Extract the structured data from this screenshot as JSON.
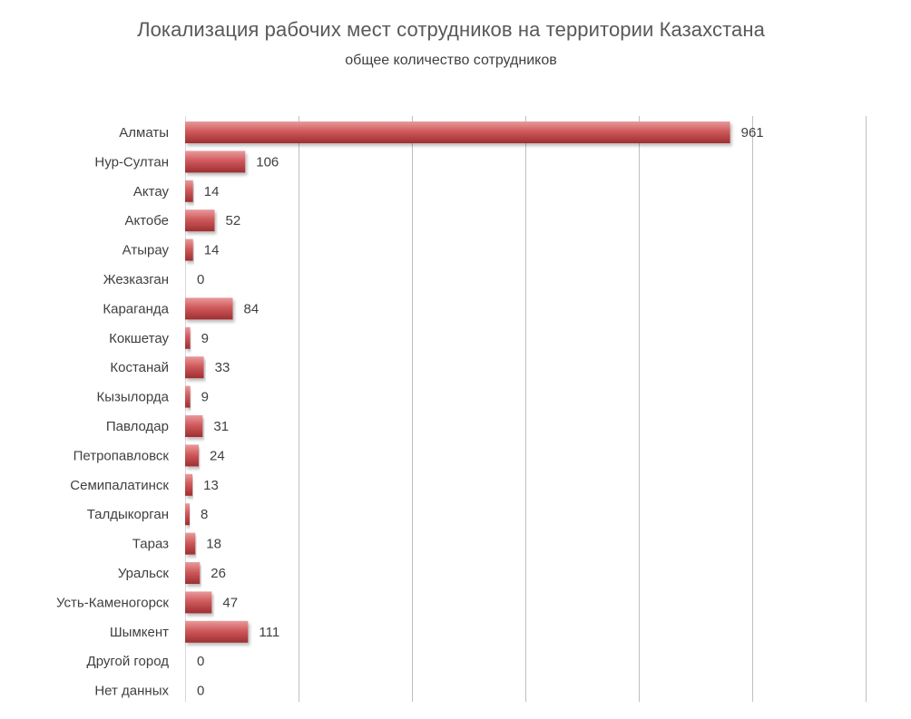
{
  "chart_data": {
    "type": "bar",
    "orientation": "horizontal",
    "title": "Локализация рабочих мест сотрудников на территории Казахстана",
    "subtitle": "общее количество сотрудников",
    "categories": [
      "Алматы",
      "Нур-Султан",
      "Актау",
      "Актобе",
      "Атырау",
      "Жезказган",
      "Караганда",
      "Кокшетау",
      "Костанай",
      "Кызылорда",
      "Павлодар",
      "Петропавловск",
      "Семипалатинск",
      "Талдыкорган",
      "Тараз",
      "Уральск",
      "Усть-Каменогорск",
      "Шымкент",
      "Другой город",
      "Нет данных"
    ],
    "values": [
      961,
      106,
      14,
      52,
      14,
      0,
      84,
      9,
      33,
      9,
      31,
      24,
      13,
      8,
      18,
      26,
      47,
      111,
      0,
      0
    ],
    "xlim": [
      0,
      1200
    ],
    "xticks_labeled": false,
    "grid": true,
    "legend": "none",
    "colors": {
      "bar_dark": "#a83336",
      "bar_mid": "#d05a5c",
      "bar_light": "#e99a9b",
      "grid": "#bfbfbf"
    }
  }
}
